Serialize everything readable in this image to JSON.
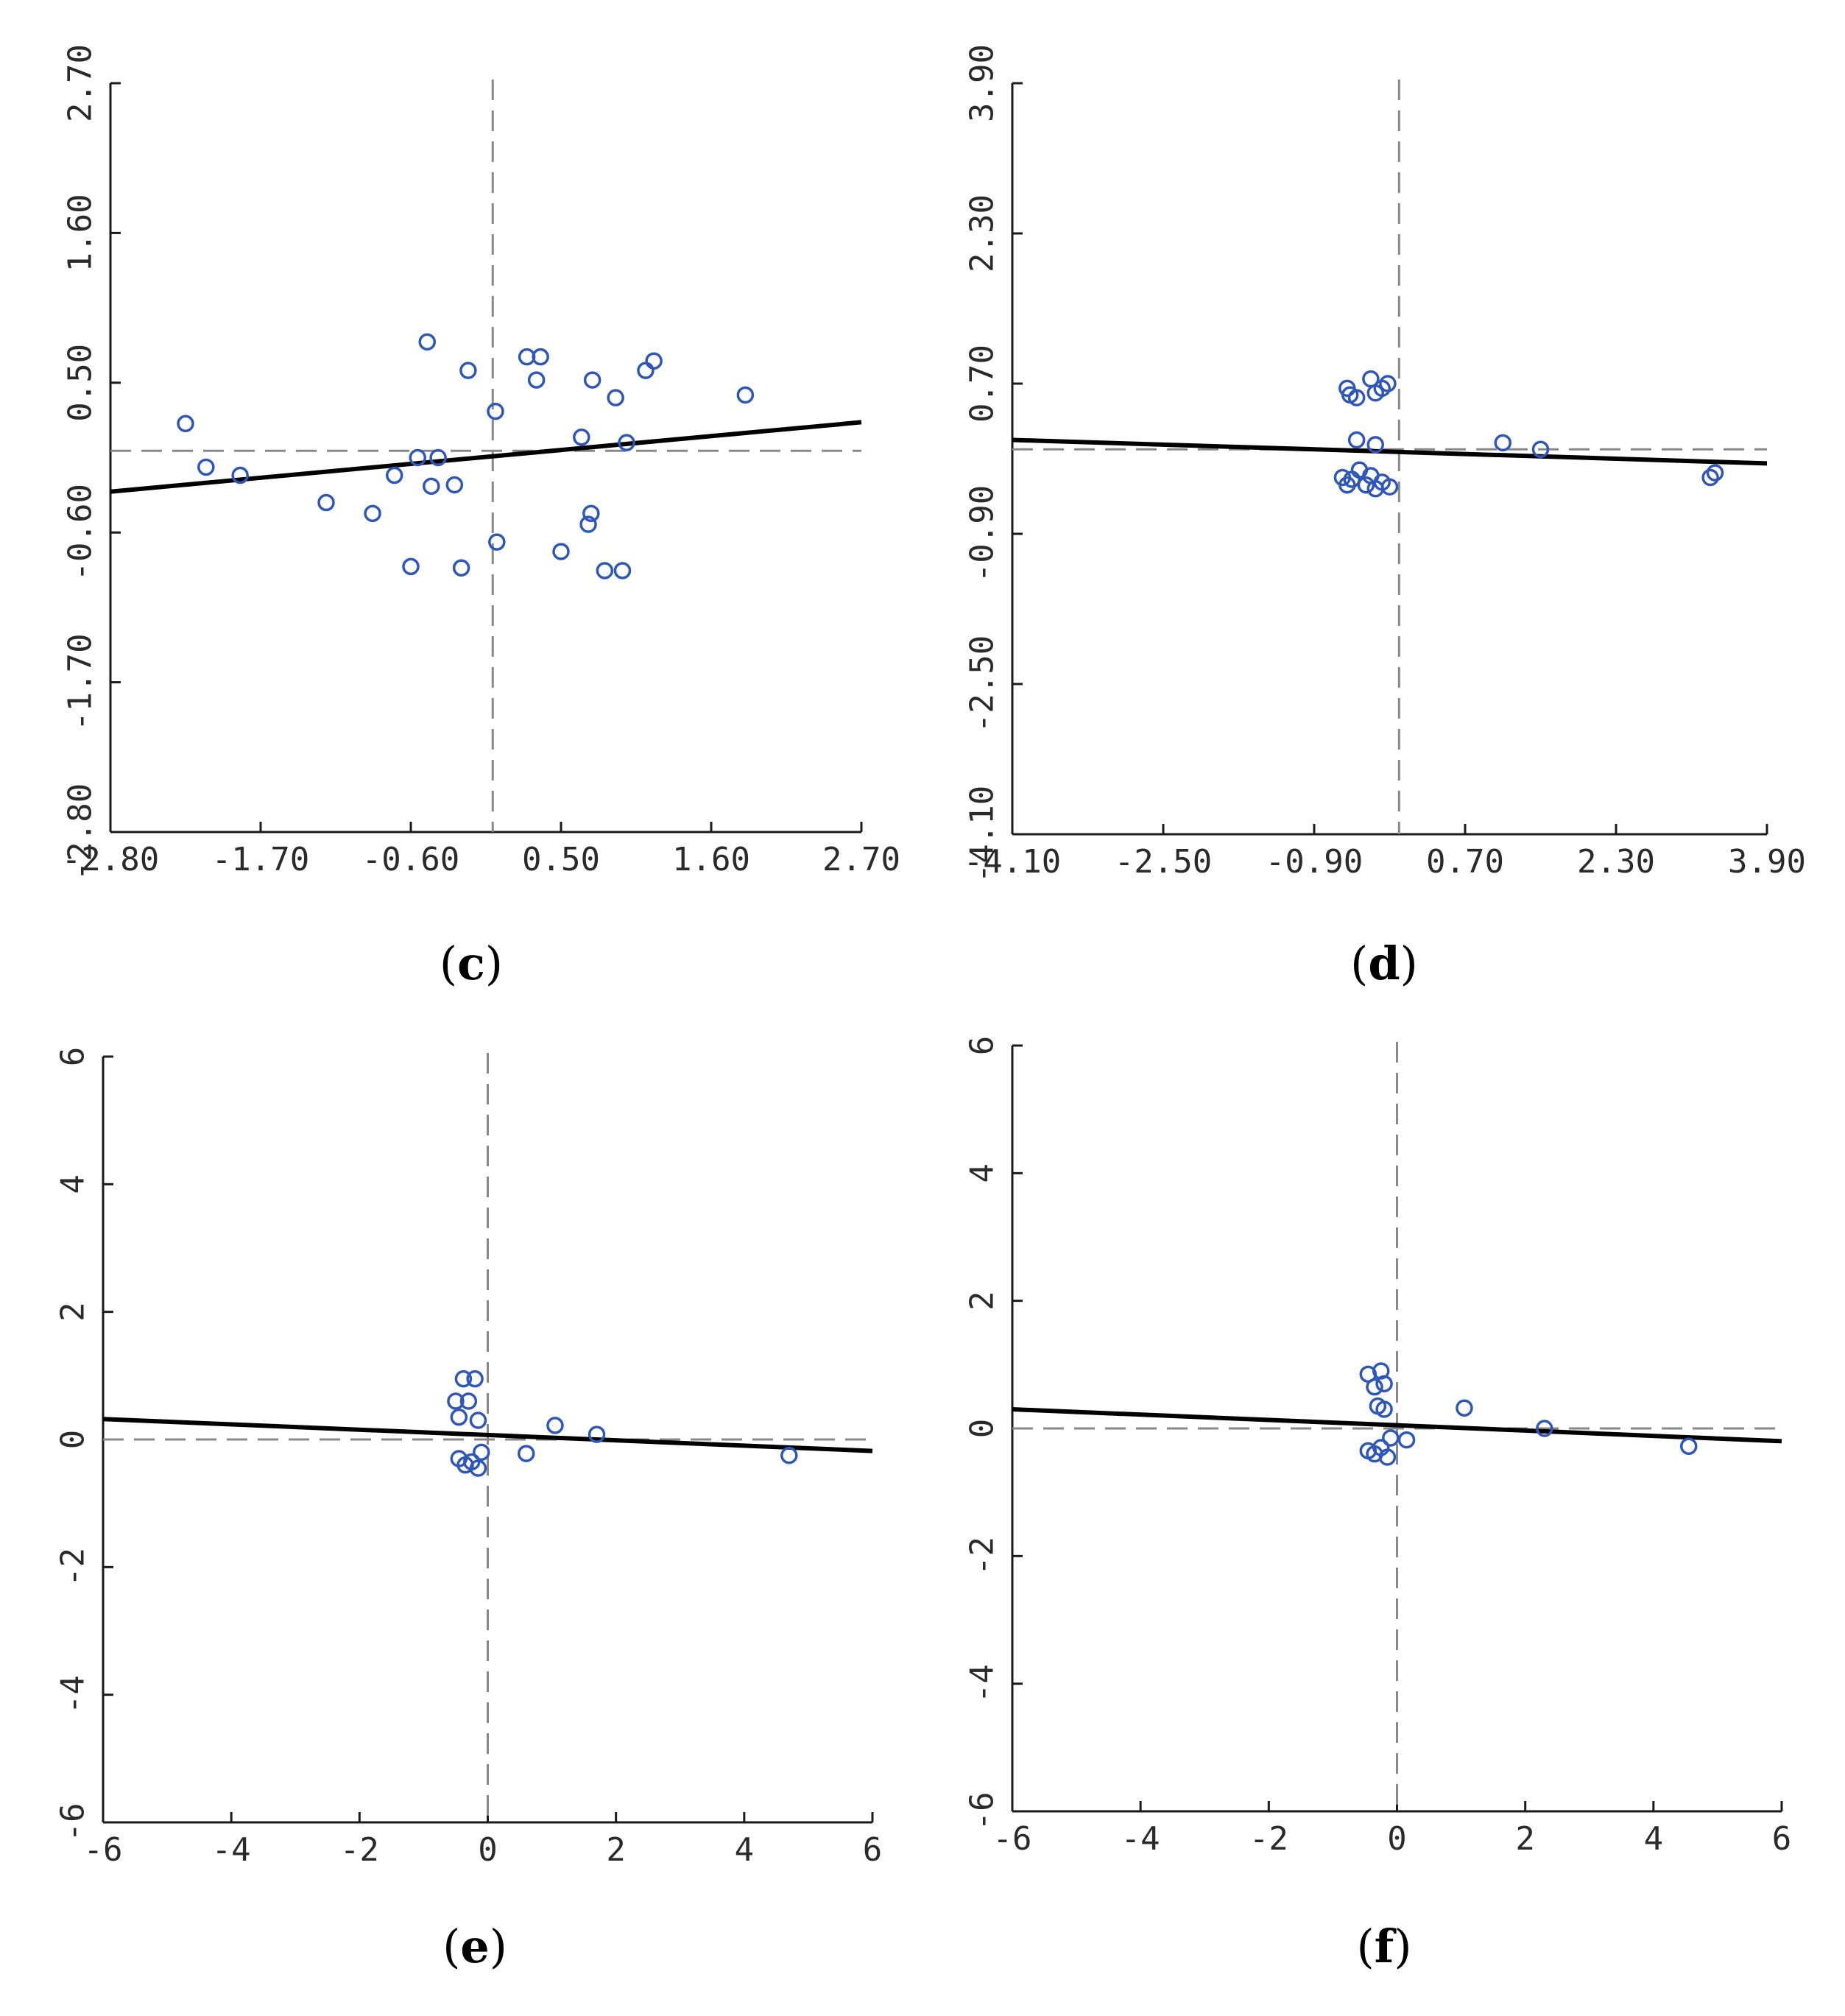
{
  "chart_data": [
    {
      "id": "c",
      "caption": "c",
      "type": "scatter",
      "xlim": [
        -2.8,
        2.7
      ],
      "ylim": [
        -2.8,
        2.7
      ],
      "x_ticks": [
        -2.8,
        -1.7,
        -0.6,
        0.5,
        1.6,
        2.7
      ],
      "x_tick_labels": [
        "-2.80",
        "-1.70",
        "-0.60",
        "0.50",
        "1.60",
        "2.70"
      ],
      "y_ticks": [
        -2.8,
        -1.7,
        -0.6,
        0.5,
        1.6,
        2.7
      ],
      "y_tick_labels": [
        "-2.80",
        "-1.70",
        "-0.60",
        "0.50",
        "1.60",
        "2.70"
      ],
      "fit_line": {
        "y_at_xmin": -0.3,
        "y_at_xmax": 0.21
      },
      "points": [
        {
          "x": -2.25,
          "y": 0.2
        },
        {
          "x": -2.1,
          "y": -0.12
        },
        {
          "x": -1.85,
          "y": -0.18
        },
        {
          "x": -1.22,
          "y": -0.38
        },
        {
          "x": -0.88,
          "y": -0.46
        },
        {
          "x": -0.72,
          "y": -0.18
        },
        {
          "x": -0.6,
          "y": -0.85
        },
        {
          "x": -0.55,
          "y": -0.05
        },
        {
          "x": -0.48,
          "y": 0.8
        },
        {
          "x": -0.45,
          "y": -0.26
        },
        {
          "x": -0.4,
          "y": -0.05
        },
        {
          "x": -0.28,
          "y": -0.25
        },
        {
          "x": -0.23,
          "y": -0.86
        },
        {
          "x": -0.18,
          "y": 0.59
        },
        {
          "x": 0.02,
          "y": 0.29
        },
        {
          "x": 0.03,
          "y": -0.67
        },
        {
          "x": 0.25,
          "y": 0.69
        },
        {
          "x": 0.32,
          "y": 0.52
        },
        {
          "x": 0.35,
          "y": 0.69
        },
        {
          "x": 0.5,
          "y": -0.74
        },
        {
          "x": 0.65,
          "y": 0.1
        },
        {
          "x": 0.7,
          "y": -0.54
        },
        {
          "x": 0.72,
          "y": -0.46
        },
        {
          "x": 0.73,
          "y": 0.52
        },
        {
          "x": 0.82,
          "y": -0.88
        },
        {
          "x": 0.9,
          "y": 0.39
        },
        {
          "x": 0.95,
          "y": -0.88
        },
        {
          "x": 0.98,
          "y": 0.06
        },
        {
          "x": 1.12,
          "y": 0.59
        },
        {
          "x": 1.18,
          "y": 0.66
        },
        {
          "x": 1.85,
          "y": 0.41
        }
      ]
    },
    {
      "id": "d",
      "caption": "d",
      "type": "scatter",
      "xlim": [
        -4.1,
        3.9
      ],
      "ylim": [
        -4.1,
        3.9
      ],
      "x_ticks": [
        -4.1,
        -2.5,
        -0.9,
        0.7,
        2.3,
        3.9
      ],
      "x_tick_labels": [
        "-4.10",
        "-2.50",
        "-0.90",
        "0.70",
        "2.30",
        "3.90"
      ],
      "y_ticks": [
        -4.1,
        -2.5,
        -0.9,
        0.7,
        2.3,
        3.9
      ],
      "y_tick_labels": [
        "-4.10",
        "-2.50",
        "-0.90",
        "0.70",
        "2.30",
        "3.90"
      ],
      "fit_line": {
        "y_at_xmin": 0.1,
        "y_at_xmax": -0.15
      },
      "points": [
        {
          "x": -0.55,
          "y": 0.65
        },
        {
          "x": -0.52,
          "y": 0.58
        },
        {
          "x": -0.45,
          "y": 0.55
        },
        {
          "x": -0.3,
          "y": 0.75
        },
        {
          "x": -0.25,
          "y": 0.6
        },
        {
          "x": -0.18,
          "y": 0.65
        },
        {
          "x": -0.12,
          "y": 0.7
        },
        {
          "x": -0.45,
          "y": 0.1
        },
        {
          "x": -0.25,
          "y": 0.05
        },
        {
          "x": -0.6,
          "y": -0.3
        },
        {
          "x": -0.55,
          "y": -0.38
        },
        {
          "x": -0.5,
          "y": -0.32
        },
        {
          "x": -0.42,
          "y": -0.22
        },
        {
          "x": -0.35,
          "y": -0.38
        },
        {
          "x": -0.3,
          "y": -0.28
        },
        {
          "x": -0.25,
          "y": -0.42
        },
        {
          "x": -0.18,
          "y": -0.35
        },
        {
          "x": -0.1,
          "y": -0.4
        },
        {
          "x": 1.1,
          "y": 0.07
        },
        {
          "x": 1.5,
          "y": 0.0
        },
        {
          "x": 3.35,
          "y": -0.25
        },
        {
          "x": 3.3,
          "y": -0.3
        }
      ]
    },
    {
      "id": "e",
      "caption": "e",
      "type": "scatter",
      "xlim": [
        -6,
        6
      ],
      "ylim": [
        -6,
        6
      ],
      "x_ticks": [
        -6,
        -4,
        -2,
        0,
        2,
        4,
        6
      ],
      "x_tick_labels": [
        "-6",
        "-4",
        "-2",
        "0",
        "2",
        "4",
        "6"
      ],
      "y_ticks": [
        -6,
        -4,
        -2,
        0,
        2,
        4,
        6
      ],
      "y_tick_labels": [
        "-6",
        "-4",
        "-2",
        "0",
        "2",
        "4",
        "6"
      ],
      "fit_line": {
        "y_at_xmin": 0.32,
        "y_at_xmax": -0.18
      },
      "points": [
        {
          "x": -0.5,
          "y": 0.6
        },
        {
          "x": -0.45,
          "y": 0.35
        },
        {
          "x": -0.38,
          "y": 0.95
        },
        {
          "x": -0.3,
          "y": 0.6
        },
        {
          "x": -0.2,
          "y": 0.95
        },
        {
          "x": -0.15,
          "y": 0.3
        },
        {
          "x": -0.45,
          "y": -0.3
        },
        {
          "x": -0.35,
          "y": -0.4
        },
        {
          "x": -0.25,
          "y": -0.35
        },
        {
          "x": -0.15,
          "y": -0.45
        },
        {
          "x": -0.1,
          "y": -0.2
        },
        {
          "x": 0.6,
          "y": -0.22
        },
        {
          "x": 1.05,
          "y": 0.22
        },
        {
          "x": 1.7,
          "y": 0.08
        },
        {
          "x": 4.7,
          "y": -0.25
        }
      ]
    },
    {
      "id": "f",
      "caption": "f",
      "type": "scatter",
      "xlim": [
        -6,
        6
      ],
      "ylim": [
        -6,
        6
      ],
      "x_ticks": [
        -6,
        -4,
        -2,
        0,
        2,
        4,
        6
      ],
      "x_tick_labels": [
        "-6",
        "-4",
        "-2",
        "0",
        "2",
        "4",
        "6"
      ],
      "y_ticks": [
        -6,
        -4,
        -2,
        0,
        2,
        4,
        6
      ],
      "y_tick_labels": [
        "-6",
        "-4",
        "-2",
        "0",
        "2",
        "4",
        "6"
      ],
      "fit_line": {
        "y_at_xmin": 0.3,
        "y_at_xmax": -0.2
      },
      "points": [
        {
          "x": -0.45,
          "y": 0.85
        },
        {
          "x": -0.35,
          "y": 0.65
        },
        {
          "x": -0.25,
          "y": 0.9
        },
        {
          "x": -0.2,
          "y": 0.7
        },
        {
          "x": -0.3,
          "y": 0.35
        },
        {
          "x": -0.2,
          "y": 0.3
        },
        {
          "x": -0.45,
          "y": -0.35
        },
        {
          "x": -0.35,
          "y": -0.4
        },
        {
          "x": -0.25,
          "y": -0.3
        },
        {
          "x": -0.15,
          "y": -0.45
        },
        {
          "x": -0.1,
          "y": -0.15
        },
        {
          "x": 0.15,
          "y": -0.18
        },
        {
          "x": 1.05,
          "y": 0.32
        },
        {
          "x": 2.3,
          "y": 0.0
        },
        {
          "x": 4.55,
          "y": -0.28
        }
      ]
    }
  ],
  "colors": {
    "point": "#2f57b8",
    "fit_line": "#000000",
    "reference_line": "#888888",
    "axis": "#1a1a1a"
  }
}
